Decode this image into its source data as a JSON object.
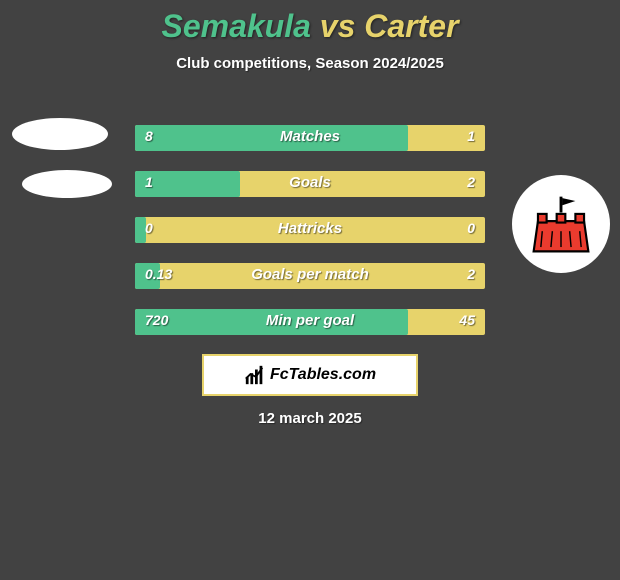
{
  "title": {
    "player1": "Semakula",
    "vs": " vs ",
    "player2": "Carter",
    "color1": "#4fc28c",
    "color_mid": "#e7d36b",
    "color2": "#e7d36b"
  },
  "subtitle": "Club competitions, Season 2024/2025",
  "colors": {
    "background": "#424242",
    "bar_bg": "#e7d36b",
    "bar_fill": "#4fc28c",
    "watermark_border": "#e7d36b",
    "subtitle_color": "#ffffff",
    "text_white": "#ffffff"
  },
  "bars": [
    {
      "label": "Matches",
      "left": "8",
      "right": "1",
      "fill_pct": 78
    },
    {
      "label": "Goals",
      "left": "1",
      "right": "2",
      "fill_pct": 30
    },
    {
      "label": "Hattricks",
      "left": "0",
      "right": "0",
      "fill_pct": 3
    },
    {
      "label": "Goals per match",
      "left": "0.13",
      "right": "2",
      "fill_pct": 7
    },
    {
      "label": "Min per goal",
      "left": "720",
      "right": "45",
      "fill_pct": 78
    }
  ],
  "watermark": "FcTables.com",
  "date": "12 march 2025",
  "avatar_right": {
    "flag_color": "#ea3b2e",
    "pole_color": "#000000",
    "detail_color": "#000000"
  }
}
